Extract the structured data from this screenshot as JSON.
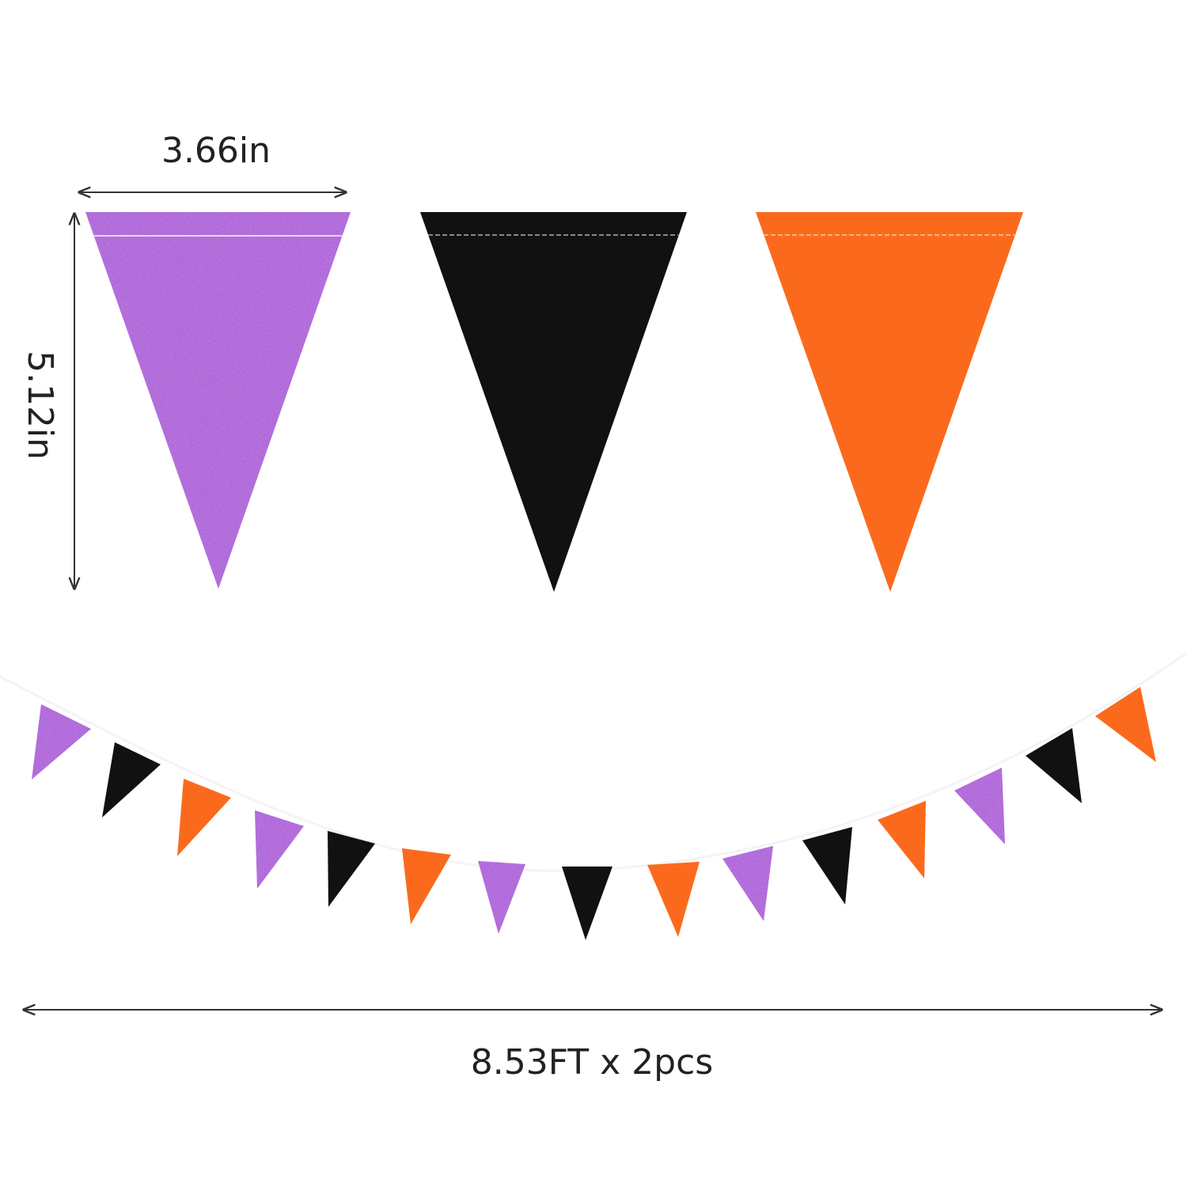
{
  "dimensions": {
    "width_label": "3.66in",
    "height_label": "5.12in",
    "length_label": "8.53FT x 2pcs"
  },
  "colors": {
    "purple": "#a437d6",
    "black": "#111111",
    "orange": "#fb6a1c",
    "background": "#ffffff"
  },
  "large_pennants": [
    "purple",
    "black",
    "orange"
  ],
  "garland_pennants": [
    "purple",
    "black",
    "orange",
    "purple",
    "black",
    "orange",
    "purple",
    "black",
    "orange",
    "purple",
    "black",
    "orange",
    "purple",
    "black",
    "orange"
  ]
}
